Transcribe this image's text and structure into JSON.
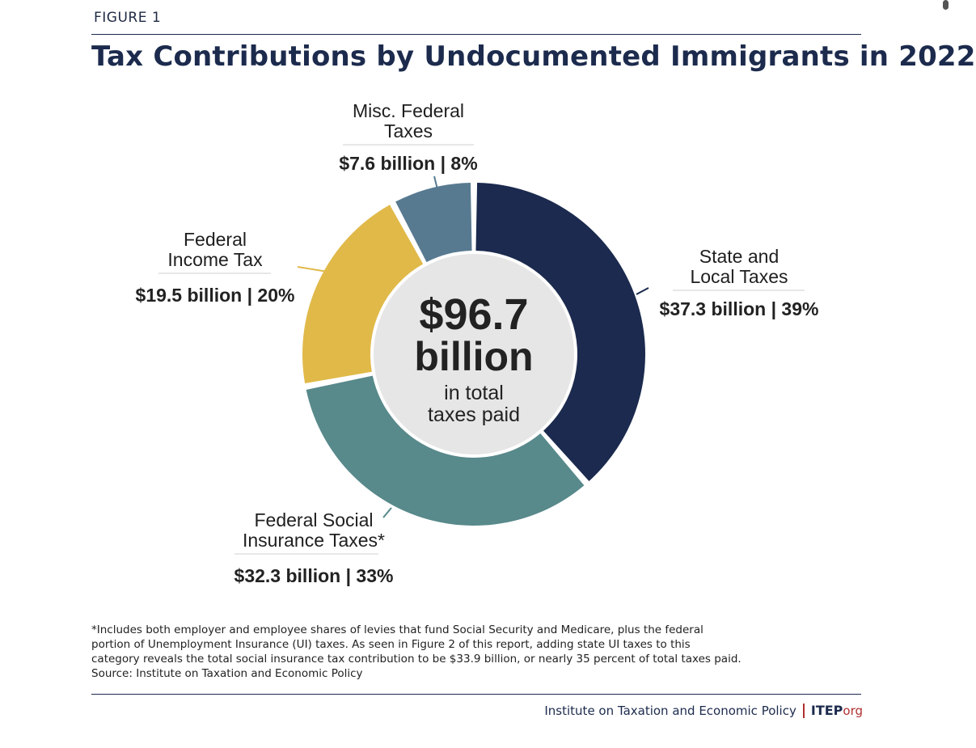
{
  "figure_label": "FIGURE 1",
  "chart_data": {
    "type": "pie",
    "variant": "donut",
    "title": "Tax Contributions by Undocumented Immigrants in 2022",
    "center": {
      "amount": "$96.7",
      "unit": "billion",
      "caption_line1": "in total",
      "caption_line2": "taxes paid"
    },
    "slices": [
      {
        "name_line1": "State and",
        "name_line2": "Local Taxes",
        "value": 37.3,
        "percent": 39,
        "value_label": "$37.3 billion | 39%",
        "color": "#1b2a4e"
      },
      {
        "name_line1": "Federal Social",
        "name_line2": "Insurance Taxes*",
        "value": 32.3,
        "percent": 33,
        "value_label": "$32.3 billion | 33%",
        "color": "#58898b"
      },
      {
        "name_line1": "Federal",
        "name_line2": "Income Tax",
        "value": 19.5,
        "percent": 20,
        "value_label": "$19.5 billion | 20%",
        "color": "#e0b949"
      },
      {
        "name_line1": "Misc. Federal",
        "name_line2": "Taxes",
        "value": 7.6,
        "percent": 8,
        "value_label": "$7.6 billion | 8%",
        "color": "#587a91"
      }
    ],
    "center_fill": "#e6e6e6"
  },
  "footnote": [
    "*Includes both employer and employee shares of levies that fund Social Security and Medicare, plus the federal",
    "portion of Unemployment Insurance (UI) taxes. As seen in Figure 2 of this report, adding state UI taxes to this",
    "category reveals the total social insurance tax contribution to be $33.9 billion, or nearly 35 percent of total taxes paid.",
    "Source: Institute on Taxation and Economic Policy"
  ],
  "footer": {
    "org": "Institute on Taxation and Economic Policy",
    "brand": "ITEP",
    "tld": "org"
  }
}
